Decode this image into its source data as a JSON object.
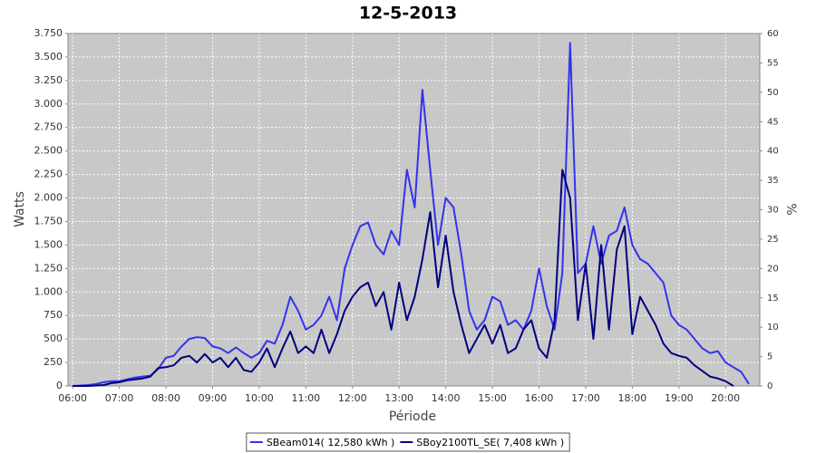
{
  "chart_data": {
    "type": "line",
    "title": "12-5-2013",
    "x_label": "Périodе",
    "y_label": "Watts",
    "y2_label": "%",
    "x": [
      "06:00",
      "06:10",
      "06:20",
      "06:30",
      "06:40",
      "06:50",
      "07:00",
      "07:10",
      "07:20",
      "07:30",
      "07:40",
      "07:50",
      "08:00",
      "08:10",
      "08:20",
      "08:30",
      "08:40",
      "08:50",
      "09:00",
      "09:10",
      "09:20",
      "09:30",
      "09:40",
      "09:50",
      "10:00",
      "10:10",
      "10:20",
      "10:30",
      "10:40",
      "10:50",
      "11:00",
      "11:10",
      "11:20",
      "11:30",
      "11:40",
      "11:50",
      "12:00",
      "12:10",
      "12:20",
      "12:30",
      "12:40",
      "12:50",
      "13:00",
      "13:10",
      "13:20",
      "13:30",
      "13:40",
      "13:50",
      "14:00",
      "14:10",
      "14:20",
      "14:30",
      "14:40",
      "14:50",
      "15:00",
      "15:10",
      "15:20",
      "15:30",
      "15:40",
      "15:50",
      "16:00",
      "16:10",
      "16:20",
      "16:30",
      "16:40",
      "16:50",
      "17:00",
      "17:10",
      "17:20",
      "17:30",
      "17:40",
      "17:50",
      "18:00",
      "18:10",
      "18:20",
      "18:30",
      "18:40",
      "18:50",
      "19:00",
      "19:10",
      "19:20",
      "19:30",
      "19:40",
      "19:50",
      "20:00",
      "20:10",
      "20:20",
      "20:30"
    ],
    "series": [
      {
        "name": "SBeam014( 12,580 kWh )",
        "color": "#3333ee",
        "values": [
          0,
          5,
          10,
          20,
          40,
          50,
          50,
          70,
          90,
          100,
          110,
          180,
          300,
          320,
          420,
          500,
          520,
          510,
          420,
          400,
          350,
          410,
          350,
          300,
          350,
          480,
          450,
          650,
          950,
          800,
          600,
          650,
          750,
          950,
          700,
          1250,
          1500,
          1700,
          1740,
          1500,
          1400,
          1650,
          1500,
          2300,
          1900,
          3150,
          2300,
          1500,
          2000,
          1900,
          1400,
          800,
          600,
          700,
          950,
          900,
          650,
          700,
          600,
          800,
          1250,
          850,
          600,
          1200,
          3650,
          1200,
          1300,
          1700,
          1300,
          1600,
          1650,
          1900,
          1500,
          1350,
          1300,
          1200,
          1100,
          750,
          650,
          600,
          500,
          400,
          350,
          370,
          250,
          200,
          150,
          20
        ]
      },
      {
        "name": "SBoy2100TL_SE( 7,408 kWh )",
        "color": "#000080",
        "values": [
          0,
          0,
          0,
          5,
          10,
          30,
          40,
          60,
          70,
          80,
          100,
          190,
          200,
          220,
          300,
          320,
          250,
          340,
          250,
          300,
          200,
          300,
          170,
          150,
          250,
          400,
          200,
          400,
          580,
          350,
          420,
          350,
          600,
          350,
          550,
          800,
          950,
          1050,
          1100,
          850,
          1000,
          600,
          1100,
          700,
          950,
          1350,
          1850,
          1050,
          1600,
          1000,
          650,
          350,
          500,
          650,
          450,
          650,
          350,
          400,
          600,
          700,
          400,
          300,
          700,
          2300,
          2000,
          700,
          1300,
          500,
          1500,
          600,
          1450,
          1700,
          550,
          950,
          800,
          650,
          450,
          350,
          320,
          300,
          220,
          160,
          100,
          80,
          50,
          0,
          null,
          null
        ]
      }
    ],
    "xlim": [
      "05:54",
      "20:44"
    ],
    "xticks": [
      "06:00",
      "07:00",
      "08:00",
      "09:00",
      "10:00",
      "11:00",
      "12:00",
      "13:00",
      "14:00",
      "15:00",
      "16:00",
      "17:00",
      "18:00",
      "19:00",
      "20:00"
    ],
    "ylim": [
      0,
      3750
    ],
    "yticks": [
      0,
      250,
      500,
      750,
      {
        "value": 1000,
        "label": "1.000"
      },
      {
        "value": 1250,
        "label": "1.250"
      },
      {
        "value": 1500,
        "label": "1.500"
      },
      {
        "value": 1750,
        "label": "1.750"
      },
      {
        "value": 2000,
        "label": "2.000"
      },
      {
        "value": 2250,
        "label": "2.250"
      },
      {
        "value": 2500,
        "label": "2.500"
      },
      {
        "value": 2750,
        "label": "2.750"
      },
      {
        "value": 3000,
        "label": "3.000"
      },
      {
        "value": 3250,
        "label": "3.250"
      },
      {
        "value": 3500,
        "label": "3.500"
      },
      {
        "value": 3750,
        "label": "3.750"
      }
    ],
    "y2lim": [
      0,
      60
    ],
    "y2ticks": [
      0,
      5,
      10,
      15,
      20,
      25,
      30,
      35,
      40,
      45,
      50,
      55,
      60
    ],
    "grid": true,
    "background": "#c8c8c8",
    "legend": "bottom"
  }
}
